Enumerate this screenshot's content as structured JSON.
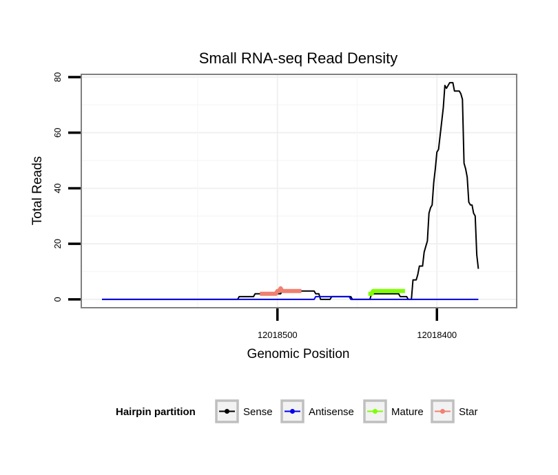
{
  "chart_data": {
    "type": "line",
    "title": "Small RNA-seq Read Density",
    "xlabel": "Genomic Position",
    "ylabel": "Total Reads",
    "x_reversed": true,
    "xlim": [
      12018623,
      12018350
    ],
    "ylim": [
      -3,
      81
    ],
    "x_ticks": [
      12018500,
      12018400
    ],
    "x_tick_labels": [
      "12018500",
      "12018400"
    ],
    "y_ticks": [
      0,
      20,
      40,
      60,
      80
    ],
    "y_tick_labels": [
      "0",
      "20",
      "40",
      "60",
      "80"
    ],
    "grid": true,
    "legend": {
      "title": "Hairpin partition",
      "position": "bottom",
      "entries": [
        "Sense",
        "Antisense",
        "Mature",
        "Star"
      ]
    },
    "series": [
      {
        "name": "Sense",
        "color": "#000000",
        "stroke_width": 2,
        "points": [
          [
            12018610,
            0
          ],
          [
            12018525,
            0
          ],
          [
            12018524,
            1
          ],
          [
            12018515,
            1
          ],
          [
            12018514,
            2
          ],
          [
            12018498,
            2
          ],
          [
            12018497,
            3
          ],
          [
            12018477,
            3
          ],
          [
            12018476,
            2
          ],
          [
            12018474,
            2
          ],
          [
            12018473,
            0
          ],
          [
            12018467,
            0
          ],
          [
            12018466,
            1
          ],
          [
            12018454,
            1
          ],
          [
            12018453,
            0
          ],
          [
            12018442,
            0
          ],
          [
            12018441,
            2
          ],
          [
            12018424,
            2
          ],
          [
            12018423,
            1
          ],
          [
            12018419,
            1
          ],
          [
            12018418,
            0
          ],
          [
            12018416,
            0
          ],
          [
            12018415,
            7
          ],
          [
            12018413,
            7
          ],
          [
            12018412,
            9
          ],
          [
            12018411,
            12
          ],
          [
            12018409,
            12
          ],
          [
            12018408,
            17
          ],
          [
            12018407,
            19
          ],
          [
            12018406,
            21
          ],
          [
            12018405,
            31
          ],
          [
            12018404,
            33
          ],
          [
            12018403,
            34
          ],
          [
            12018402,
            42
          ],
          [
            12018401,
            47
          ],
          [
            12018400,
            53
          ],
          [
            12018399,
            54
          ],
          [
            12018398,
            59
          ],
          [
            12018397,
            64
          ],
          [
            12018396,
            69
          ],
          [
            12018395,
            77
          ],
          [
            12018394,
            76
          ],
          [
            12018393,
            77
          ],
          [
            12018392,
            78
          ],
          [
            12018391,
            78
          ],
          [
            12018390,
            78
          ],
          [
            12018389,
            75
          ],
          [
            12018386,
            75
          ],
          [
            12018385,
            74
          ],
          [
            12018384,
            72
          ],
          [
            12018383,
            49
          ],
          [
            12018382,
            47
          ],
          [
            12018381,
            44
          ],
          [
            12018380,
            35
          ],
          [
            12018379,
            34
          ],
          [
            12018378,
            34
          ],
          [
            12018377,
            31
          ],
          [
            12018376,
            30
          ],
          [
            12018375,
            16
          ],
          [
            12018374,
            11
          ]
        ]
      },
      {
        "name": "Antisense",
        "color": "#0000ee",
        "stroke_width": 2,
        "points": [
          [
            12018610,
            0
          ],
          [
            12018477,
            0
          ],
          [
            12018476,
            1
          ],
          [
            12018455,
            1
          ],
          [
            12018454,
            0
          ],
          [
            12018374,
            0
          ]
        ]
      },
      {
        "name": "Mature",
        "color": "#7fff00",
        "stroke_width": 6,
        "points": [
          [
            12018443,
            2
          ],
          [
            12018441,
            2
          ],
          [
            12018440,
            3
          ],
          [
            12018438,
            3
          ],
          [
            12018437,
            3
          ],
          [
            12018420,
            3
          ]
        ]
      },
      {
        "name": "Star",
        "color": "#f08070",
        "stroke_width": 6,
        "points": [
          [
            12018511,
            2
          ],
          [
            12018501,
            2
          ],
          [
            12018500,
            3
          ],
          [
            12018499,
            3
          ],
          [
            12018498,
            4
          ],
          [
            12018497,
            3
          ],
          [
            12018485,
            3
          ]
        ]
      }
    ]
  }
}
